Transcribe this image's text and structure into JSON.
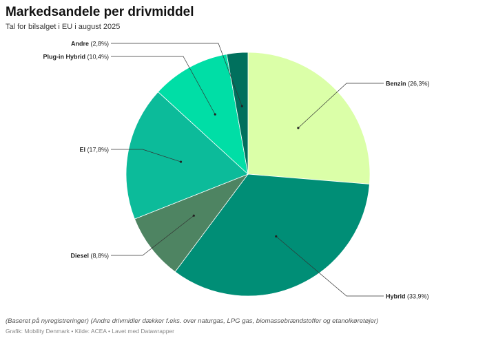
{
  "header": {
    "title": "Markedsandele per drivmiddel",
    "subtitle": "Tal for bilsalget i EU i august 2025"
  },
  "footer": {
    "notes": "(Baseret på nyregistreringer) (Andre drivmidler dækker f.eks. over naturgas, LPG gas, biomassebrændstoffer og etanolkøretøjer)",
    "byline": "Grafik: Mobility Denmark • Kilde: ACEA • Lavet med Datawrapper"
  },
  "chart_data": {
    "type": "pie",
    "title": "Markedsandele per drivmiddel",
    "subtitle": "Tal for bilsalget i EU i august 2025",
    "unit": "%",
    "slices": [
      {
        "label": "Benzin",
        "value": 26.3,
        "value_label": "(26,3%)",
        "color": "#dbffa8",
        "side": "right"
      },
      {
        "label": "Hybrid",
        "value": 33.9,
        "value_label": "(33,9%)",
        "color": "#008e76",
        "side": "right"
      },
      {
        "label": "Diesel",
        "value": 8.8,
        "value_label": "(8,8%)",
        "color": "#4e8462",
        "side": "left"
      },
      {
        "label": "El",
        "value": 17.8,
        "value_label": "(17,8%)",
        "color": "#0cbb9a",
        "side": "left"
      },
      {
        "label": "Plug-in Hybrid",
        "value": 10.4,
        "value_label": "(10,4%)",
        "color": "#00dea6",
        "side": "left"
      },
      {
        "label": "Andre",
        "value": 2.8,
        "value_label": "(2,8%)",
        "color": "#00705d",
        "side": "left"
      }
    ],
    "legend": "none",
    "labels": "outside with leader lines"
  }
}
